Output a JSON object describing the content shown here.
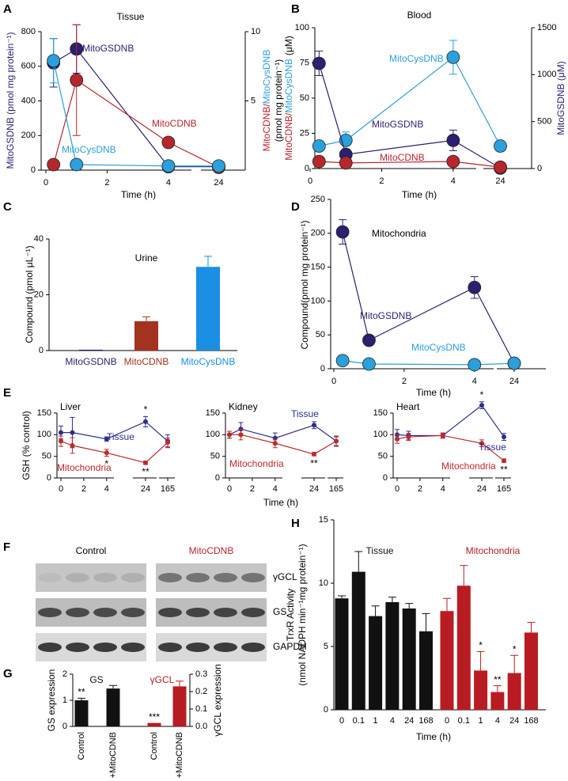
{
  "panel_labels": [
    "A",
    "B",
    "C",
    "D",
    "E",
    "F",
    "G",
    "H"
  ],
  "blot": {
    "groups": [
      "Control",
      "MitoCDNB"
    ],
    "bands": [
      "γGCL",
      "GS",
      "GAPDH"
    ]
  },
  "chart_data": [
    {
      "type": "line",
      "title": "Tissue",
      "xlabel": "Time (h)",
      "ylabel": "MitoGSDNB (pmol mg protein⁻¹)",
      "y2label": [
        "MitoCDNB",
        "/",
        "MitoCysDNB",
        "(pmol mg protein⁻¹)"
      ],
      "xlim": [
        0,
        24
      ],
      "xticks": [
        0,
        2,
        4,
        24
      ],
      "ylim": [
        0,
        800
      ],
      "yticks": [
        0,
        200,
        400,
        600,
        800
      ],
      "y2lim": [
        0,
        10
      ],
      "y2ticks": [
        5,
        10
      ],
      "series": [
        {
          "name": "MitoGSDNB",
          "color": "#2b1f70",
          "x": [
            0.25,
            1,
            4,
            24
          ],
          "values": [
            620,
            700,
            20,
            20
          ],
          "errors": [
            140,
            140,
            null,
            null
          ]
        },
        {
          "name": "MitoCDNB",
          "color": "#b7262c",
          "axis": "y2",
          "x": [
            0.25,
            1,
            4,
            24
          ],
          "values": [
            0.4,
            6.5,
            2,
            0.2
          ],
          "errors": [
            null,
            4,
            null,
            null
          ]
        },
        {
          "name": "MitoCysDNB",
          "color": "#2aa0dd",
          "axis": "y2",
          "x": [
            0.25,
            1,
            4,
            24
          ],
          "values": [
            7.9,
            0.4,
            0.3,
            0.3
          ],
          "errors": [
            1.6,
            null,
            null,
            null
          ]
        }
      ]
    },
    {
      "type": "line",
      "title": "Blood",
      "xlabel": "Time (h)",
      "ylabel": [
        "MitoCDNB",
        "/",
        "MitoCysDNB",
        "(μM)"
      ],
      "y2label": "MitoGSDNB (μM)",
      "xlim": [
        0,
        24
      ],
      "xticks": [
        0,
        2,
        4,
        24
      ],
      "ylim": [
        0,
        100
      ],
      "yticks": [
        0,
        25,
        50,
        75,
        100
      ],
      "y2lim": [
        0,
        1500
      ],
      "y2ticks": [
        0,
        500,
        1000,
        1500
      ],
      "series": [
        {
          "name": "MitoCysDNB",
          "color": "#2aa0dd",
          "x": [
            0.25,
            1,
            4,
            24
          ],
          "values": [
            16,
            20,
            79,
            16
          ],
          "errors": [
            null,
            6,
            12,
            null
          ]
        },
        {
          "name": "MitoGSDNB",
          "color": "#2b1f70",
          "axis": "y2",
          "x": [
            0.25,
            1,
            4,
            24
          ],
          "values": [
            1120,
            150,
            300,
            5
          ],
          "errors": [
            130,
            null,
            110,
            null
          ]
        },
        {
          "name": "MitoCDNB",
          "color": "#b7262c",
          "x": [
            0.25,
            1,
            4,
            24
          ],
          "values": [
            5,
            4,
            5,
            1
          ]
        }
      ]
    },
    {
      "type": "bar",
      "title": "Urine",
      "ylabel": "Compound (pmol μL⁻¹)",
      "categories": [
        "MitoGSDNB",
        "MitoCDNB",
        "MitoCysDNB"
      ],
      "values": [
        0.3,
        10.5,
        30
      ],
      "errors": [
        null,
        1.6,
        3.8
      ],
      "colors": [
        "#2b1f70",
        "#a3321f",
        "#1a8fe3"
      ],
      "ylim": [
        0,
        40
      ],
      "yticks": [
        0,
        20,
        40
      ]
    },
    {
      "type": "line",
      "title": "Mitochondria",
      "xlabel": "Time (h)",
      "ylabel": "Compound(pmol mg protein⁻¹)",
      "xlim": [
        0,
        24
      ],
      "xticks": [
        0,
        2,
        4,
        24
      ],
      "ylim": [
        0,
        250
      ],
      "yticks": [
        0,
        50,
        100,
        150,
        200,
        250
      ],
      "series": [
        {
          "name": "MitoGSDNB",
          "color": "#2b1f70",
          "x": [
            0.25,
            1,
            4,
            24
          ],
          "values": [
            202,
            42,
            120,
            8
          ],
          "errors": [
            18,
            null,
            16,
            null
          ]
        },
        {
          "name": "MitoCysDNB",
          "color": "#2aa0dd",
          "x": [
            0.25,
            1,
            4,
            24
          ],
          "values": [
            12,
            7,
            6,
            8
          ]
        }
      ]
    },
    {
      "type": "line",
      "title": "Liver",
      "ylabel": "GSH (% control)",
      "xlim": [
        0,
        165
      ],
      "xticks": [
        0,
        2,
        4,
        24,
        165
      ],
      "ylim": [
        0,
        150
      ],
      "yticks": [
        0,
        50,
        100,
        150
      ],
      "series": [
        {
          "name": "Tissue",
          "color": "#2b2e8c",
          "x": [
            0,
            1,
            4,
            24,
            165
          ],
          "values": [
            105,
            105,
            90,
            130,
            85
          ],
          "errors": [
            15,
            35,
            5,
            12,
            15
          ],
          "significance": [
            null,
            null,
            null,
            "*",
            null
          ]
        },
        {
          "name": "Mitochondria",
          "color": "#c0282a",
          "x": [
            0,
            1,
            4,
            24,
            165
          ],
          "values": [
            85,
            75,
            58,
            35,
            82
          ],
          "errors": [
            12,
            18,
            8,
            4,
            10
          ],
          "significance": [
            null,
            null,
            "*",
            "**",
            null
          ]
        }
      ]
    },
    {
      "type": "line",
      "title": "Kidney",
      "xlabel": "Time (h)",
      "xlim": [
        0,
        165
      ],
      "xticks": [
        0,
        2,
        4,
        24,
        165
      ],
      "ylim": [
        0,
        150
      ],
      "yticks": [
        0,
        50,
        100,
        150
      ],
      "series": [
        {
          "name": "Tissue",
          "color": "#2b2e8c",
          "x": [
            0,
            1,
            4,
            24,
            165
          ],
          "values": [
            100,
            113,
            92,
            122,
            85
          ],
          "errors": [
            8,
            15,
            12,
            8,
            10
          ]
        },
        {
          "name": "Mitochondria",
          "color": "#c0282a",
          "x": [
            0,
            1,
            4,
            24,
            165
          ],
          "values": [
            100,
            100,
            80,
            55,
            85
          ],
          "errors": [
            8,
            12,
            10,
            4,
            12
          ],
          "significance": [
            null,
            null,
            null,
            "**",
            null
          ]
        }
      ]
    },
    {
      "type": "line",
      "title": "Heart",
      "xlim": [
        0,
        165
      ],
      "xticks": [
        0,
        2,
        4,
        24,
        165
      ],
      "ylim": [
        0,
        150
      ],
      "yticks": [
        0,
        50,
        100,
        150
      ],
      "series": [
        {
          "name": "Tissue",
          "color": "#2b2e8c",
          "x": [
            0,
            1,
            4,
            24,
            165
          ],
          "values": [
            100,
            98,
            98,
            168,
            95
          ],
          "errors": [
            12,
            10,
            5,
            8,
            8
          ],
          "significance": [
            null,
            null,
            null,
            "*",
            null
          ]
        },
        {
          "name": "Mitochondria",
          "color": "#c0282a",
          "x": [
            0,
            1,
            4,
            24,
            165
          ],
          "values": [
            90,
            95,
            98,
            80,
            40
          ],
          "errors": [
            10,
            8,
            6,
            8,
            4
          ],
          "significance": [
            null,
            null,
            null,
            null,
            "**"
          ]
        }
      ]
    },
    {
      "type": "bar",
      "ylabel": "GS expression",
      "y2label": "γGCL expression",
      "categories": [
        "Control",
        "+MitoCDNB",
        "Control",
        "+MitoCDNB"
      ],
      "ylim": [
        0,
        2
      ],
      "yticks": [
        0,
        1,
        2
      ],
      "y2lim": [
        0,
        0.3
      ],
      "y2ticks": [
        {
          "value": 0,
          "label": "0.0"
        },
        0.1,
        0.2,
        0.3
      ],
      "series": [
        {
          "name": "GS",
          "color": "#111111",
          "values": [
            1.0,
            1.45,
            null,
            null
          ],
          "errors": [
            0.08,
            0.12,
            null,
            null
          ],
          "significance": [
            "**",
            null,
            null,
            null
          ]
        },
        {
          "name": "γGCL",
          "color": "#b81c22",
          "axis": "y2",
          "values": [
            null,
            null,
            0.02,
            0.23
          ],
          "errors": [
            null,
            null,
            null,
            0.03
          ],
          "significance": [
            null,
            null,
            "***",
            null
          ]
        }
      ]
    },
    {
      "type": "bar",
      "xlabel": "Time (h)",
      "ylabel": [
        "TrxR Activity",
        "(nmol NADPH min⁻¹mg protein⁻¹)"
      ],
      "categories": [
        "0",
        "0.1",
        "1",
        "4",
        "24",
        "168",
        "0",
        "0.1",
        "1",
        "4",
        "24",
        "168"
      ],
      "ylim": [
        0,
        15
      ],
      "yticks": [
        0,
        5,
        10,
        15
      ],
      "series": [
        {
          "name": "Tissue",
          "color": "#111111",
          "values": [
            8.8,
            10.9,
            7.4,
            8.5,
            8.0,
            6.2,
            null,
            null,
            null,
            null,
            null,
            null
          ],
          "errors": [
            0.2,
            1.6,
            0.8,
            0.4,
            0.4,
            1.4,
            null,
            null,
            null,
            null,
            null,
            null
          ]
        },
        {
          "name": "Mitochondria",
          "color": "#b81c22",
          "values": [
            null,
            null,
            null,
            null,
            null,
            null,
            7.8,
            9.8,
            3.1,
            1.4,
            2.9,
            6.1
          ],
          "errors": [
            null,
            null,
            null,
            null,
            null,
            null,
            1.0,
            1.6,
            1.5,
            0.5,
            1.4,
            0.8
          ],
          "significance": [
            null,
            null,
            null,
            null,
            null,
            null,
            null,
            null,
            "*",
            "**",
            "*",
            null
          ]
        }
      ]
    }
  ]
}
